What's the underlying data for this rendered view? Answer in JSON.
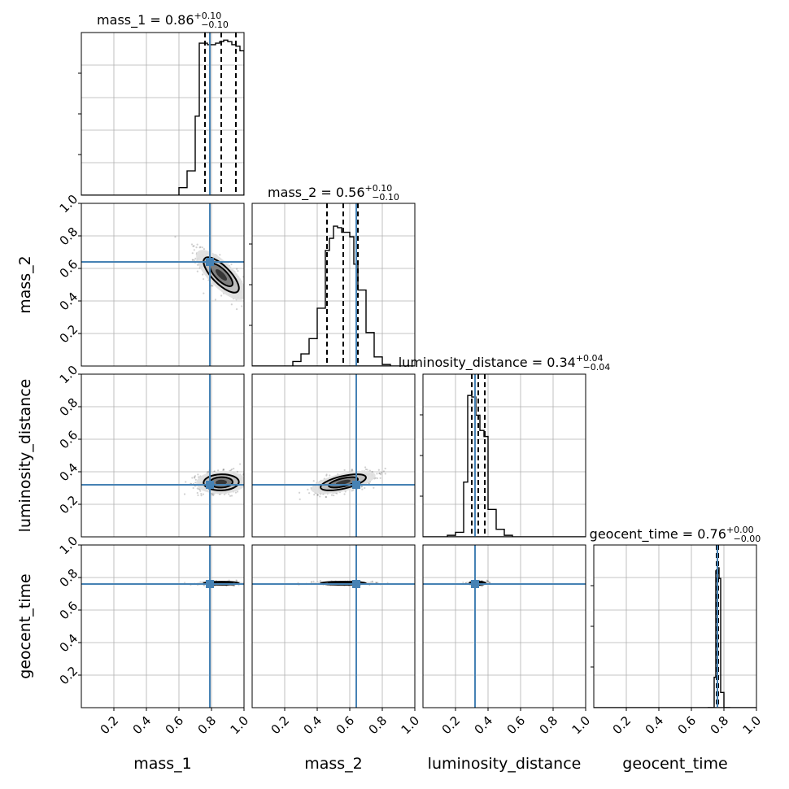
{
  "chart_data": {
    "type": "corner",
    "parameters": [
      "mass_1",
      "mass_2",
      "luminosity_distance",
      "geocent_time"
    ],
    "axis_labels": [
      "mass_1",
      "mass_2",
      "luminosity_distance",
      "geocent_time"
    ],
    "titles": [
      {
        "name": "mass_1",
        "median": "0.86",
        "plus": "+0.10",
        "minus": "−0.10"
      },
      {
        "name": "mass_2",
        "median": "0.56",
        "plus": "+0.10",
        "minus": "−0.10"
      },
      {
        "name": "luminosity_distance",
        "median": "0.34",
        "plus": "+0.04",
        "minus": "−0.04"
      },
      {
        "name": "geocent_time",
        "median": "0.76",
        "plus": "+0.00",
        "minus": "−0.00"
      }
    ],
    "xlim": [
      0,
      1
    ],
    "ylim": [
      0,
      1
    ],
    "ticks": [
      0.2,
      0.4,
      0.6,
      0.8,
      1.0
    ],
    "tick_labels": [
      "0.2",
      "0.4",
      "0.6",
      "0.8",
      "1.0"
    ],
    "grid": true,
    "truths": [
      0.79,
      0.64,
      0.32,
      0.76
    ],
    "quantiles": [
      [
        0.76,
        0.86,
        0.95
      ],
      [
        0.46,
        0.56,
        0.65
      ],
      [
        0.3,
        0.34,
        0.38
      ],
      [
        0.755,
        0.76,
        0.765
      ]
    ],
    "histograms": [
      {
        "edges": [
          0.6,
          0.65,
          0.7,
          0.725,
          0.75,
          0.775,
          0.8,
          0.825,
          0.85,
          0.875,
          0.9,
          0.925,
          0.95,
          0.975,
          1.0
        ],
        "counts": [
          0.05,
          0.16,
          0.52,
          1.0,
          1.0,
          0.99,
          0.99,
          1.0,
          1.01,
          1.02,
          1.01,
          0.99,
          0.98,
          0.95
        ]
      },
      {
        "edges": [
          0.25,
          0.3,
          0.35,
          0.4,
          0.45,
          0.475,
          0.5,
          0.525,
          0.55,
          0.575,
          0.6,
          0.625,
          0.65,
          0.7,
          0.75,
          0.8,
          0.85
        ],
        "counts": [
          0.03,
          0.08,
          0.18,
          0.38,
          0.76,
          0.84,
          0.92,
          0.91,
          0.88,
          0.88,
          0.85,
          0.67,
          0.5,
          0.22,
          0.06,
          0.01
        ]
      },
      {
        "edges": [
          0.15,
          0.2,
          0.25,
          0.275,
          0.3,
          0.325,
          0.35,
          0.375,
          0.4,
          0.45,
          0.5,
          0.55
        ],
        "counts": [
          0.01,
          0.03,
          0.36,
          0.93,
          0.92,
          0.8,
          0.7,
          0.66,
          0.18,
          0.05,
          0.01
        ]
      },
      {
        "edges": [
          0.7,
          0.74,
          0.75,
          0.76,
          0.77,
          0.78,
          0.8,
          0.84
        ],
        "counts": [
          0.0,
          0.2,
          0.9,
          0.92,
          0.85,
          0.1,
          0.0
        ]
      }
    ],
    "joint_2d": {
      "mass_2_vs_mass_1": {
        "center": [
          0.86,
          0.56
        ],
        "sigma": [
          0.07,
          0.07
        ],
        "rho": -0.75
      },
      "luminosity_distance_vs_mass_1": {
        "center": [
          0.86,
          0.335
        ],
        "sigma": [
          0.07,
          0.032
        ],
        "rho": 0.05
      },
      "luminosity_distance_vs_mass_2": {
        "center": [
          0.56,
          0.335
        ],
        "sigma": [
          0.09,
          0.032
        ],
        "rho": 0.6
      },
      "geocent_time_vs_mass_1": {
        "center": [
          0.86,
          0.765
        ],
        "sigma": [
          0.07,
          0.006
        ],
        "rho": 0.0
      },
      "geocent_time_vs_mass_2": {
        "center": [
          0.56,
          0.765
        ],
        "sigma": [
          0.09,
          0.006
        ],
        "rho": 0.0
      },
      "geocent_time_vs_luminosity_distance": {
        "center": [
          0.335,
          0.765
        ],
        "sigma": [
          0.032,
          0.006
        ],
        "rho": 0.0
      }
    },
    "colors": {
      "truth": "#4682b4",
      "grid": "#b0b0b0",
      "line": "#000000"
    }
  }
}
